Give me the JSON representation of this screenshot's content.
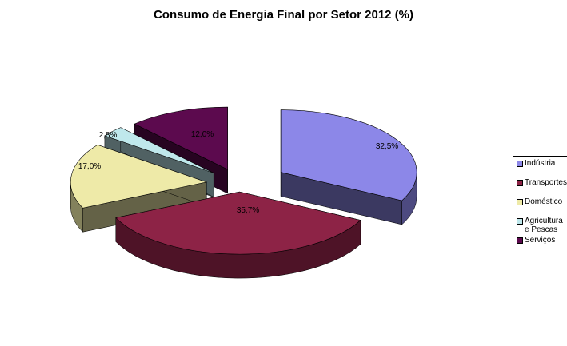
{
  "chart_data": {
    "type": "pie",
    "title": "Consumo de Energia Final por Setor 2012 (%)",
    "categories": [
      "Indústria",
      "Transportes",
      "Doméstico",
      "Agricultura e Pescas",
      "Serviços"
    ],
    "values": [
      32.5,
      35.7,
      17.0,
      2.8,
      12.0
    ],
    "data_labels": [
      "32,5%",
      "35,7%",
      "17,0%",
      "2,8%",
      "12,0%"
    ],
    "colors": [
      "#8c87e8",
      "#8d2346",
      "#eeeaa8",
      "#bfe8ec",
      "#5c0a4e"
    ],
    "exploded": true,
    "three_d": true,
    "legend_position": "right"
  }
}
